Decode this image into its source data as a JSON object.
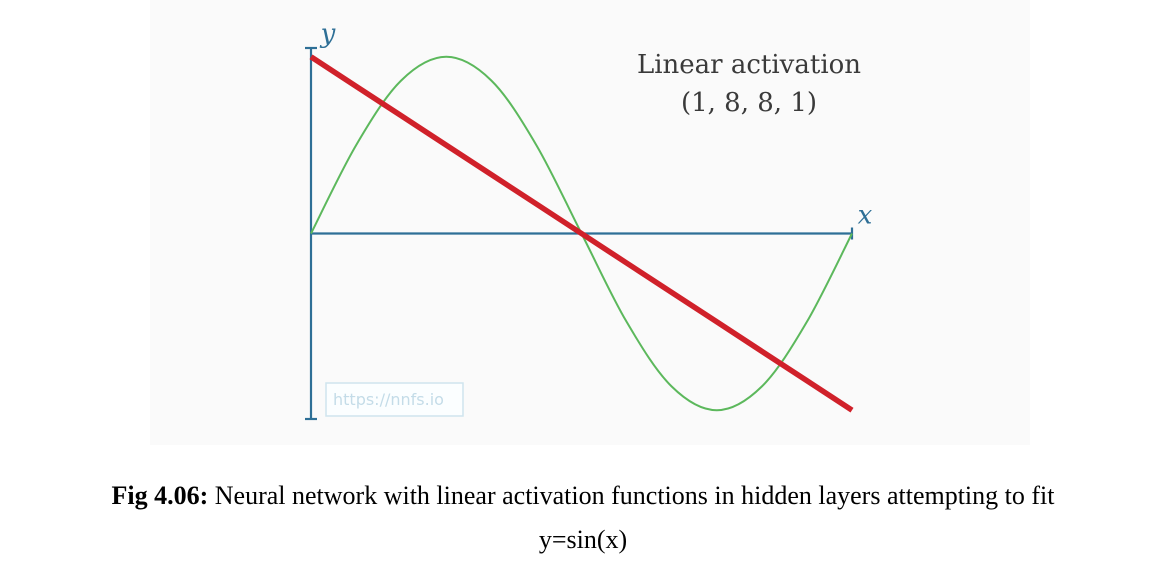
{
  "chart_data": {
    "type": "line",
    "x": [
      0,
      0.5236,
      1.0472,
      1.5708,
      2.0944,
      2.618,
      3.1416,
      3.6652,
      4.1888,
      4.7124,
      5.236,
      5.7596,
      6.2832
    ],
    "series": [
      {
        "values": [
          0,
          0.5,
          0.866,
          1,
          0.866,
          0.5,
          0,
          -0.5,
          -0.866,
          -1,
          -0.866,
          -0.5,
          0
        ],
        "color": "#5cb85c"
      },
      {
        "values": [
          1,
          0.8333,
          0.6667,
          0.5,
          0.3333,
          0.1667,
          0,
          -0.1667,
          -0.3333,
          -0.5,
          -0.6667,
          -0.8333,
          -1
        ],
        "color": "#d0212a"
      }
    ],
    "xlabel": "x",
    "ylabel": "y",
    "xlim": [
      0,
      6.2832
    ],
    "ylim": [
      -1.05,
      1.05
    ],
    "annotation": [
      "Linear activation",
      "(1, 8, 8, 1)"
    ],
    "grid": false,
    "watermark": "https://nnfs.io",
    "axis_color": "#2e6f96"
  },
  "caption": {
    "label": "Fig 4.06:",
    "text": " Neural network with linear activation functions in hidden layers attempting to fit",
    "formula": "y=sin(x)"
  }
}
